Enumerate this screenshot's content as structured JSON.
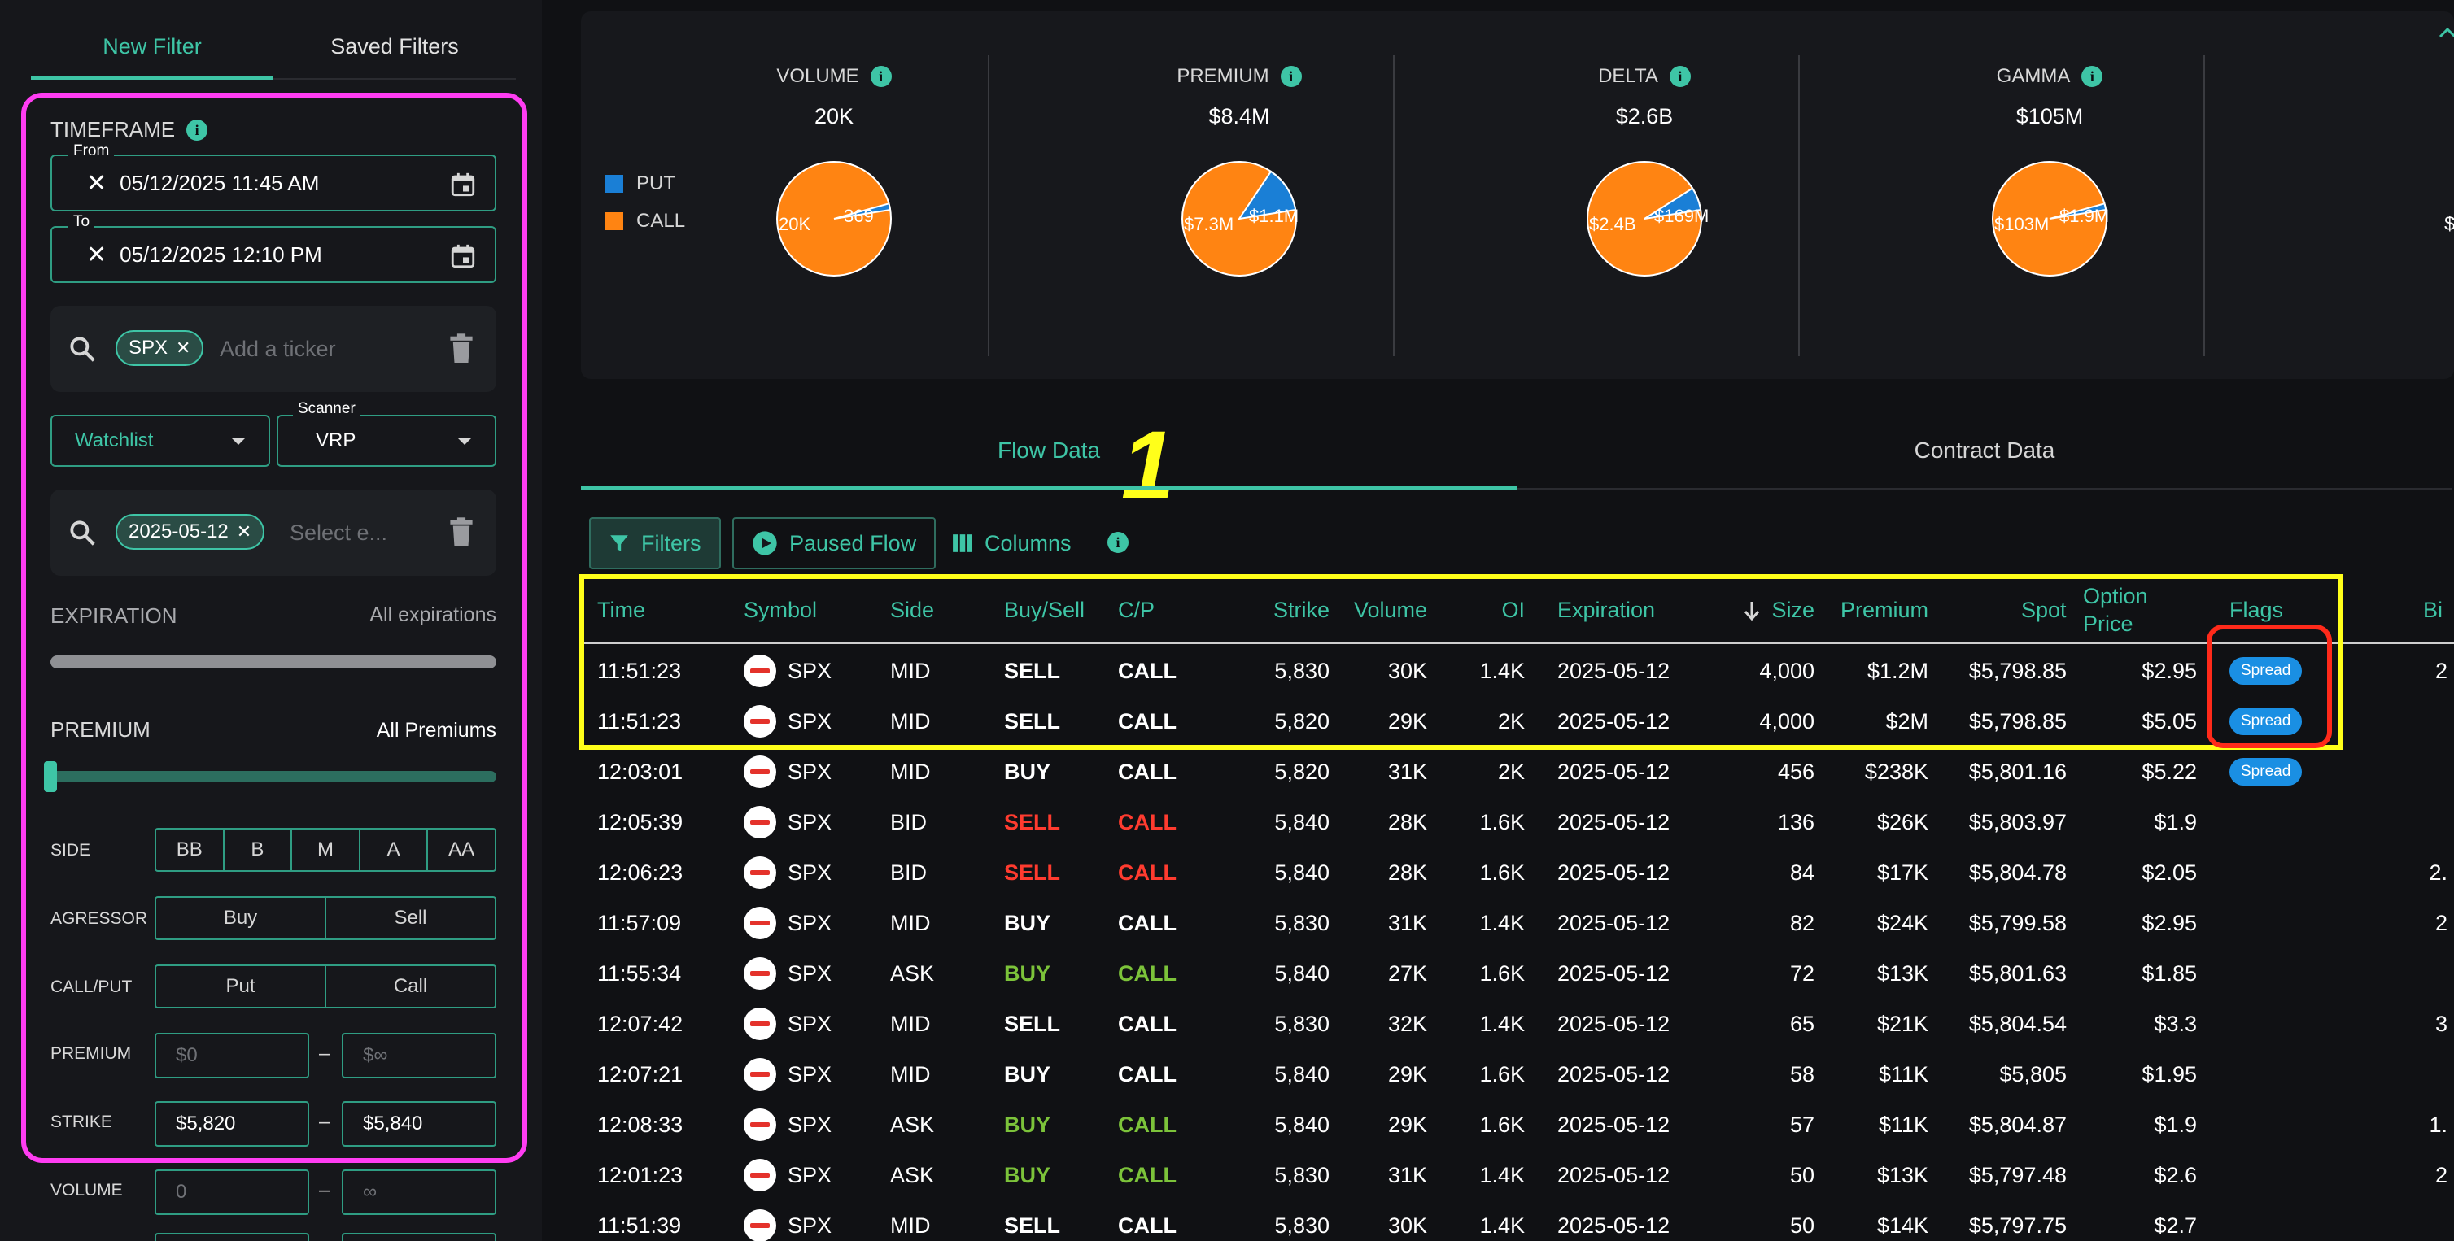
{
  "sidebar": {
    "tabs": [
      {
        "label": "New Filter"
      },
      {
        "label": "Saved Filters"
      }
    ],
    "timeframe": {
      "title": "TIMEFRAME",
      "from_label": "From",
      "from_value": "05/12/2025 11:45 AM",
      "to_label": "To",
      "to_value": "05/12/2025 12:10 PM"
    },
    "ticker": {
      "chip": "SPX",
      "placeholder": "Add a ticker"
    },
    "watchlist": {
      "label": "Watchlist"
    },
    "scanner": {
      "label": "Scanner",
      "value": "VRP"
    },
    "expiry_select": {
      "chip": "2025-05-12",
      "placeholder": "Select e..."
    },
    "expiration": {
      "title": "EXPIRATION",
      "value": "All expirations"
    },
    "premium": {
      "title": "PREMIUM",
      "value": "All Premiums"
    },
    "side": {
      "label": "SIDE",
      "options": [
        "BB",
        "B",
        "M",
        "A",
        "AA"
      ]
    },
    "agressor": {
      "label": "AGRESSOR",
      "options": [
        "Buy",
        "Sell"
      ]
    },
    "callput": {
      "label": "CALL/PUT",
      "options": [
        "Put",
        "Call"
      ]
    },
    "premium_range": {
      "label": "PREMIUM",
      "min_placeholder": "$0",
      "max_placeholder": "$∞"
    },
    "strike_range": {
      "label": "STRIKE",
      "min": "$5,820",
      "max": "$5,840"
    },
    "volume_range": {
      "label": "VOLUME",
      "min_placeholder": "0",
      "max_placeholder": "∞"
    },
    "dash": "–"
  },
  "summary": {
    "legend": [
      {
        "label": "PUT",
        "color": "#1a7fd6"
      },
      {
        "label": "CALL",
        "color": "#ff8412"
      }
    ],
    "metrics": [
      {
        "title": "VOLUME",
        "value": "20K",
        "call_label": "20K",
        "put_label": "369",
        "put_fraction": 0.018
      },
      {
        "title": "PREMIUM",
        "value": "$8.4M",
        "call_label": "$7.3M",
        "put_label": "$1.1M",
        "put_fraction": 0.131
      },
      {
        "title": "DELTA",
        "value": "$2.6B",
        "call_label": "$2.4B",
        "put_label": "$169M",
        "put_fraction": 0.065
      },
      {
        "title": "GAMMA",
        "value": "$105M",
        "call_label": "$103M",
        "put_label": "$1.9M",
        "put_fraction": 0.018
      }
    ],
    "partial_label": "$"
  },
  "annotation_number": "1",
  "data_tabs": [
    {
      "label": "Flow Data"
    },
    {
      "label": "Contract Data"
    }
  ],
  "toolbar": {
    "filters": "Filters",
    "paused": "Paused Flow",
    "columns": "Columns"
  },
  "table": {
    "headers": {
      "time": "Time",
      "symbol": "Symbol",
      "side": "Side",
      "buysell": "Buy/Sell",
      "cp": "C/P",
      "strike": "Strike",
      "volume": "Volume",
      "oi": "OI",
      "expiration": "Expiration",
      "size": "Size",
      "premium": "Premium",
      "spot": "Spot",
      "option_price_1": "Option",
      "option_price_2": "Price",
      "flags": "Flags",
      "bid": "Bi"
    },
    "rows": [
      {
        "time": "11:51:23",
        "symbol": "SPX",
        "side": "MID",
        "buysell": "SELL",
        "cp": "CALL",
        "strike": "5,830",
        "volume": "30K",
        "oi": "1.4K",
        "expiration": "2025-05-12",
        "size": "4,000",
        "premium": "$1.2M",
        "spot": "$5,798.85",
        "option_price": "$2.95",
        "flag": "Spread",
        "bid": "2",
        "tone": "neutral"
      },
      {
        "time": "11:51:23",
        "symbol": "SPX",
        "side": "MID",
        "buysell": "SELL",
        "cp": "CALL",
        "strike": "5,820",
        "volume": "29K",
        "oi": "2K",
        "expiration": "2025-05-12",
        "size": "4,000",
        "premium": "$2M",
        "spot": "$5,798.85",
        "option_price": "$5.05",
        "flag": "Spread",
        "bid": "",
        "tone": "neutral"
      },
      {
        "time": "12:03:01",
        "symbol": "SPX",
        "side": "MID",
        "buysell": "BUY",
        "cp": "CALL",
        "strike": "5,820",
        "volume": "31K",
        "oi": "2K",
        "expiration": "2025-05-12",
        "size": "456",
        "premium": "$238K",
        "spot": "$5,801.16",
        "option_price": "$5.22",
        "flag": "Spread",
        "bid": "",
        "tone": "neutral"
      },
      {
        "time": "12:05:39",
        "symbol": "SPX",
        "side": "BID",
        "buysell": "SELL",
        "cp": "CALL",
        "strike": "5,840",
        "volume": "28K",
        "oi": "1.6K",
        "expiration": "2025-05-12",
        "size": "136",
        "premium": "$26K",
        "spot": "$5,803.97",
        "option_price": "$1.9",
        "flag": "",
        "bid": "",
        "tone": "sell"
      },
      {
        "time": "12:06:23",
        "symbol": "SPX",
        "side": "BID",
        "buysell": "SELL",
        "cp": "CALL",
        "strike": "5,840",
        "volume": "28K",
        "oi": "1.6K",
        "expiration": "2025-05-12",
        "size": "84",
        "premium": "$17K",
        "spot": "$5,804.78",
        "option_price": "$2.05",
        "flag": "",
        "bid": "2.",
        "tone": "sell"
      },
      {
        "time": "11:57:09",
        "symbol": "SPX",
        "side": "MID",
        "buysell": "BUY",
        "cp": "CALL",
        "strike": "5,830",
        "volume": "31K",
        "oi": "1.4K",
        "expiration": "2025-05-12",
        "size": "82",
        "premium": "$24K",
        "spot": "$5,799.58",
        "option_price": "$2.95",
        "flag": "",
        "bid": "2",
        "tone": "neutral"
      },
      {
        "time": "11:55:34",
        "symbol": "SPX",
        "side": "ASK",
        "buysell": "BUY",
        "cp": "CALL",
        "strike": "5,840",
        "volume": "27K",
        "oi": "1.6K",
        "expiration": "2025-05-12",
        "size": "72",
        "premium": "$13K",
        "spot": "$5,801.63",
        "option_price": "$1.85",
        "flag": "",
        "bid": "",
        "tone": "buy"
      },
      {
        "time": "12:07:42",
        "symbol": "SPX",
        "side": "MID",
        "buysell": "SELL",
        "cp": "CALL",
        "strike": "5,830",
        "volume": "32K",
        "oi": "1.4K",
        "expiration": "2025-05-12",
        "size": "65",
        "premium": "$21K",
        "spot": "$5,804.54",
        "option_price": "$3.3",
        "flag": "",
        "bid": "3",
        "tone": "neutral"
      },
      {
        "time": "12:07:21",
        "symbol": "SPX",
        "side": "MID",
        "buysell": "BUY",
        "cp": "CALL",
        "strike": "5,840",
        "volume": "29K",
        "oi": "1.6K",
        "expiration": "2025-05-12",
        "size": "58",
        "premium": "$11K",
        "spot": "$5,805",
        "option_price": "$1.95",
        "flag": "",
        "bid": "",
        "tone": "neutral"
      },
      {
        "time": "12:08:33",
        "symbol": "SPX",
        "side": "ASK",
        "buysell": "BUY",
        "cp": "CALL",
        "strike": "5,840",
        "volume": "29K",
        "oi": "1.6K",
        "expiration": "2025-05-12",
        "size": "57",
        "premium": "$11K",
        "spot": "$5,804.87",
        "option_price": "$1.9",
        "flag": "",
        "bid": "1.",
        "tone": "buy"
      },
      {
        "time": "12:01:23",
        "symbol": "SPX",
        "side": "ASK",
        "buysell": "BUY",
        "cp": "CALL",
        "strike": "5,830",
        "volume": "31K",
        "oi": "1.4K",
        "expiration": "2025-05-12",
        "size": "50",
        "premium": "$13K",
        "spot": "$5,797.48",
        "option_price": "$2.6",
        "flag": "",
        "bid": "2",
        "tone": "buy"
      },
      {
        "time": "11:51:39",
        "symbol": "SPX",
        "side": "MID",
        "buysell": "SELL",
        "cp": "CALL",
        "strike": "5,830",
        "volume": "30K",
        "oi": "1.4K",
        "expiration": "2025-05-12",
        "size": "50",
        "premium": "$14K",
        "spot": "$5,797.75",
        "option_price": "$2.7",
        "flag": "",
        "bid": "",
        "tone": "neutral"
      }
    ]
  },
  "colors": {
    "accent": "#3ec5a6",
    "sell": "#ff3b2f",
    "buy": "#7cc33a",
    "highlight_pink": "#ff3df2",
    "highlight_yellow": "#ffff1a",
    "highlight_red": "#ff2a1a",
    "flag_blue": "#1a8fe3"
  }
}
